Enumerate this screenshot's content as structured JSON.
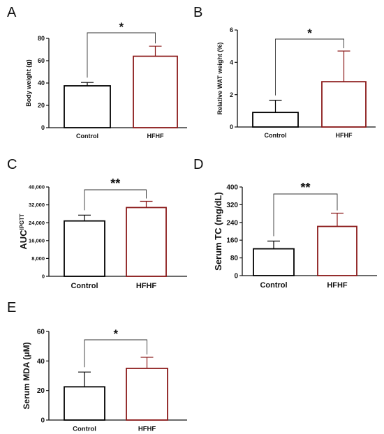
{
  "chart_data": [
    {
      "panel": "A",
      "type": "bar",
      "ylabel": "Body weight (g)",
      "ylabel_sup": "",
      "categories": [
        "Control",
        "HFHF"
      ],
      "values": [
        37.5,
        64
      ],
      "errors": [
        3,
        9
      ],
      "ylim": [
        0,
        80
      ],
      "yticks": [
        "0",
        "20",
        "40",
        "60",
        "80"
      ],
      "significance": "*",
      "bar_colors": [
        "#000000",
        "#8b1a1a"
      ]
    },
    {
      "panel": "B",
      "type": "bar",
      "ylabel": "Relative WAT weight (%)",
      "ylabel_sup": "",
      "categories": [
        "Control",
        "HFHF"
      ],
      "values": [
        0.9,
        2.8
      ],
      "errors": [
        0.75,
        1.9
      ],
      "ylim": [
        0,
        6
      ],
      "yticks": [
        "0",
        "2",
        "4",
        "6"
      ],
      "significance": "*",
      "bar_colors": [
        "#000000",
        "#8b1a1a"
      ]
    },
    {
      "panel": "C",
      "type": "bar",
      "ylabel": "AUC",
      "ylabel_sup": "IPGTT",
      "categories": [
        "Control",
        "HFHF"
      ],
      "values": [
        24800,
        30800
      ],
      "errors": [
        2600,
        2800
      ],
      "ylim": [
        0,
        40000
      ],
      "yticks": [
        "0",
        "8,000",
        "16,000",
        "24,000",
        "32,000",
        "40,000"
      ],
      "significance": "**",
      "bar_colors": [
        "#000000",
        "#8b1a1a"
      ]
    },
    {
      "panel": "D",
      "type": "bar",
      "ylabel": "Serum TC (mg/dL)",
      "ylabel_sup": "",
      "categories": [
        "Control",
        "HFHF"
      ],
      "values": [
        121,
        222
      ],
      "errors": [
        35,
        60
      ],
      "ylim": [
        0,
        400
      ],
      "yticks": [
        "0",
        "80",
        "160",
        "240",
        "320",
        "400"
      ],
      "significance": "**",
      "bar_colors": [
        "#000000",
        "#8b1a1a"
      ]
    },
    {
      "panel": "E",
      "type": "bar",
      "ylabel": "Serum MDA (μM)",
      "ylabel_sup": "",
      "categories": [
        "Control",
        "HFHF"
      ],
      "values": [
        22.5,
        35
      ],
      "errors": [
        10,
        7.5
      ],
      "ylim": [
        0,
        60
      ],
      "yticks": [
        "0",
        "20",
        "40",
        "60"
      ],
      "significance": "*",
      "bar_colors": [
        "#000000",
        "#8b1a1a"
      ]
    }
  ]
}
